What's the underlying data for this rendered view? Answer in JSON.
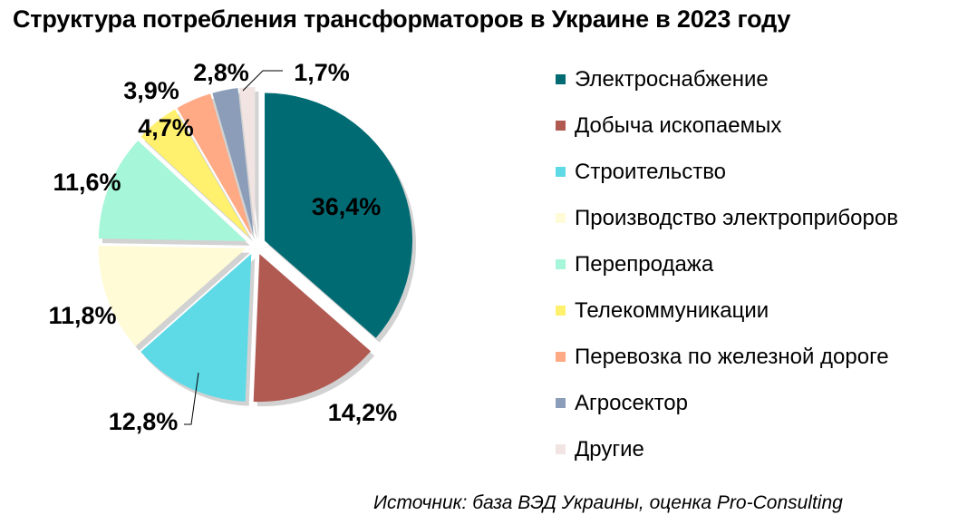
{
  "title": "Структура потребления трансформаторов в Украине в 2023 году",
  "source": "Источник: база ВЭД Украины, оценка Pro-Consulting",
  "chart_data": {
    "type": "pie",
    "title": "Структура потребления трансформаторов в Украине в 2023 году",
    "legend_position": "right",
    "unit": "%",
    "slices": [
      {
        "name": "Электроснабжение",
        "value": 36.4,
        "label": "36,4%",
        "color": "#006B73"
      },
      {
        "name": "Добыча ископаемых",
        "value": 14.2,
        "label": "14,2%",
        "color": "#B05A52"
      },
      {
        "name": "Строительство",
        "value": 12.8,
        "label": "12,8%",
        "color": "#5ED9E6"
      },
      {
        "name": "Производство электроприборов",
        "value": 11.8,
        "label": "11,8%",
        "color": "#FFFBD6"
      },
      {
        "name": "Перепродажа",
        "value": 11.6,
        "label": "11,6%",
        "color": "#A6F6D9"
      },
      {
        "name": "Телекоммуникации",
        "value": 4.7,
        "label": "4,7%",
        "color": "#FFF06E"
      },
      {
        "name": "Перевозка по железной дороге",
        "value": 3.9,
        "label": "3,9%",
        "color": "#FFAA85"
      },
      {
        "name": "Агросектор",
        "value": 2.8,
        "label": "2,8%",
        "color": "#8B9DB8"
      },
      {
        "name": "Другие",
        "value": 1.7,
        "label": "1,7%",
        "color": "#F1E4E3"
      }
    ]
  }
}
